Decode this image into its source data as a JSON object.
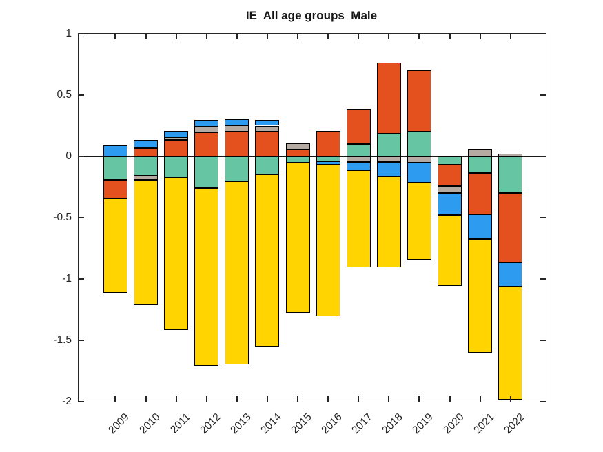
{
  "chart_data": {
    "type": "stacked-bar",
    "title": "IE  All age groups  Male",
    "categories": [
      "2009",
      "2010",
      "2011",
      "2012",
      "2013",
      "2014",
      "2015",
      "2016",
      "2017",
      "2018",
      "2019",
      "2020",
      "2021",
      "2022"
    ],
    "series": [
      {
        "name": "green-component",
        "color": "#66C5A3",
        "values": [
          -0.19,
          -0.16,
          -0.175,
          -0.26,
          -0.205,
          -0.145,
          -0.05,
          -0.04,
          0.1,
          0.185,
          0.2,
          -0.07,
          -0.135,
          -0.295
        ]
      },
      {
        "name": "orange-component",
        "color": "#E4511E",
        "values": [
          -0.155,
          0.07,
          0.135,
          0.195,
          0.205,
          0.205,
          0.055,
          0.21,
          0.285,
          0.58,
          0.505,
          -0.17,
          -0.335,
          -0.57
        ]
      },
      {
        "name": "gray-component",
        "color": "#B5ABA3",
        "values": [
          0,
          -0.03,
          0.015,
          0.045,
          0.05,
          0.045,
          0.05,
          0,
          -0.045,
          -0.045,
          -0.05,
          -0.055,
          0.06,
          0.02
        ]
      },
      {
        "name": "blue-component",
        "color": "#2D9BF0",
        "values": [
          0.09,
          0.065,
          0.06,
          0.055,
          0.05,
          0.045,
          0,
          -0.025,
          -0.065,
          -0.12,
          -0.165,
          -0.18,
          -0.205,
          -0.195
        ]
      },
      {
        "name": "yellow-component",
        "color": "#FFD400",
        "values": [
          -0.77,
          -1.02,
          -1.24,
          -1.45,
          -1.49,
          -1.405,
          -1.225,
          -1.24,
          -0.795,
          -0.74,
          -0.63,
          -0.58,
          -0.925,
          -0.925
        ]
      }
    ],
    "ylim": [
      -2,
      1
    ],
    "yticks": {
      "values": [
        1,
        0.5,
        0,
        -0.5,
        -1,
        -1.5,
        -2
      ],
      "labels": [
        "1",
        "0.5",
        "0",
        "-0.5",
        "-1",
        "-1.5",
        "-2"
      ]
    },
    "baseline": 0,
    "grid": false,
    "legend": "none",
    "axis_color": "#262626",
    "bar_edge_color": "#000000",
    "background": "#FFFFFF"
  }
}
